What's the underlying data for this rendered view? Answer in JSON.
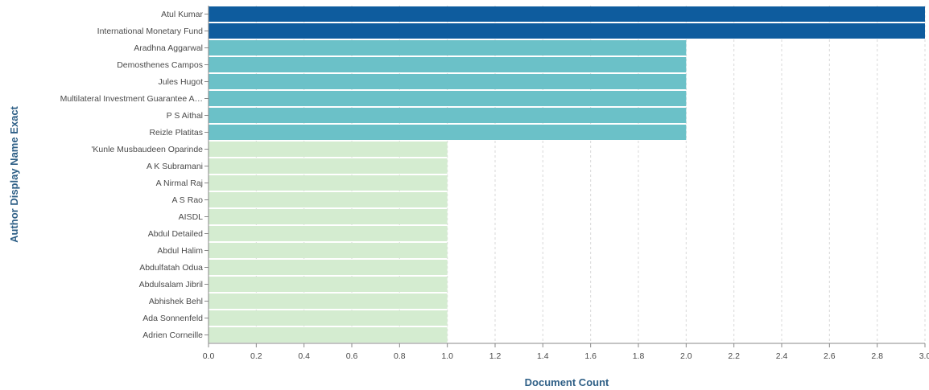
{
  "chart_data": {
    "type": "bar",
    "orientation": "horizontal",
    "title": "",
    "xlabel": "Document Count",
    "ylabel": "Author Display Name Exact",
    "xlim": [
      0,
      3.0
    ],
    "xticks": [
      "0.0",
      "0.2",
      "0.4",
      "0.6",
      "0.8",
      "1.0",
      "1.2",
      "1.4",
      "1.6",
      "1.8",
      "2.0",
      "2.2",
      "2.4",
      "2.6",
      "2.8",
      "3.0"
    ],
    "grid": true,
    "categories": [
      "Atul Kumar",
      "International Monetary Fund",
      "Aradhna Aggarwal",
      "Demosthenes Campos",
      "Jules Hugot",
      "Multilateral Investment Guarantee A…",
      "P S Aithal",
      "Reizle Platitas",
      "'Kunle Musbaudeen Oparinde",
      "A K Subramani",
      "A Nirmal Raj",
      "A S Rao",
      "AISDL",
      "Abdul Detailed",
      "Abdul Halim",
      "Abdulfatah Odua",
      "Abdulsalam Jibril",
      "Abhishek Behl",
      "Ada Sonnenfeld",
      "Adrien Corneille"
    ],
    "values": [
      3,
      3,
      2,
      2,
      2,
      2,
      2,
      2,
      1,
      1,
      1,
      1,
      1,
      1,
      1,
      1,
      1,
      1,
      1,
      1
    ],
    "color_by_value": {
      "3": "#0e5c9e",
      "2": "#6bc1c8",
      "1": "#d4ecd0"
    }
  }
}
